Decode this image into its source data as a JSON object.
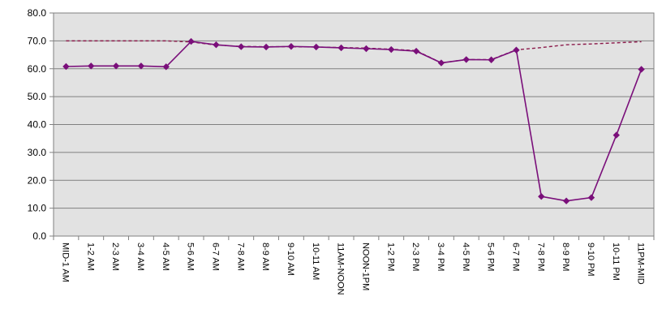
{
  "chart_data": {
    "type": "line",
    "title": "",
    "xlabel": "",
    "ylabel": "",
    "ylim": [
      0,
      80
    ],
    "y_ticks": [
      "0.0",
      "10.0",
      "20.0",
      "30.0",
      "40.0",
      "50.0",
      "60.0",
      "70.0",
      "80.0"
    ],
    "grid": "horizontal",
    "categories": [
      "MID-1 AM",
      "1-2 AM",
      "2-3 AM",
      "3-4 AM",
      "4-5 AM",
      "5-6 AM",
      "6-7 AM",
      "7-8 AM",
      "8-9 AM",
      "9-10 AM",
      "10-11 AM",
      "11AM-NOON",
      "NOON-1PM",
      "1-2 PM",
      "2-3 PM",
      "3-4 PM",
      "4-5 PM",
      "5-6 PM",
      "6-7 PM",
      "7-8 PM",
      "8-9 PM",
      "9-10 PM",
      "10-11 PM",
      "11PM-MID"
    ],
    "series": [
      {
        "style": "solid-with-diamond-markers",
        "color": "#7a0f7a",
        "values": [
          60.8,
          61.0,
          61.0,
          61.0,
          60.7,
          69.8,
          68.6,
          67.9,
          67.8,
          68.0,
          67.8,
          67.5,
          67.2,
          66.9,
          66.3,
          62.1,
          63.3,
          63.2,
          66.7,
          14.2,
          12.6,
          13.8,
          36.2,
          59.8
        ]
      },
      {
        "style": "dashed",
        "color": "#8b1a4a",
        "values": [
          70.0,
          70.0,
          70.0,
          70.0,
          70.0,
          69.6,
          68.5,
          68.0,
          67.9,
          67.9,
          67.8,
          67.6,
          67.4,
          67.0,
          66.5,
          62.1,
          63.3,
          63.3,
          66.8,
          67.6,
          68.6,
          68.9,
          69.3,
          69.7
        ]
      }
    ]
  }
}
